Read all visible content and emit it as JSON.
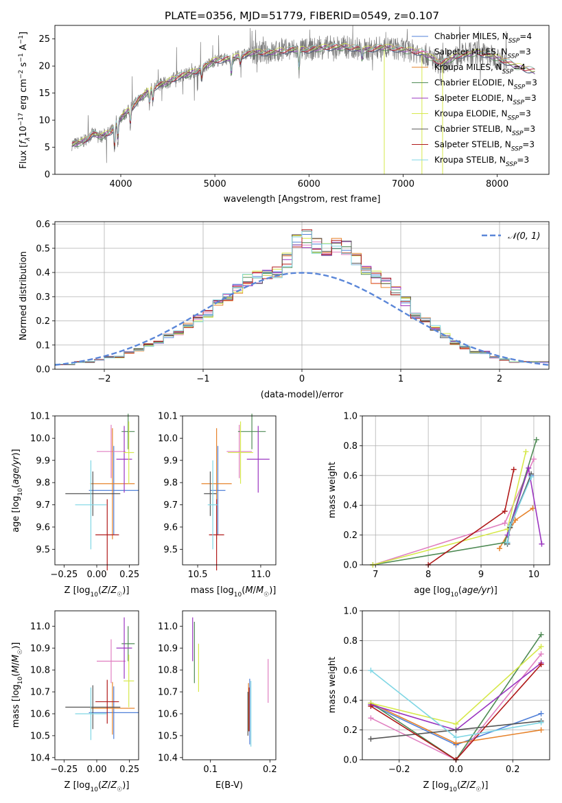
{
  "title": "PLATE=0356, MJD=51779, FIBERID=0549, z=0.107",
  "colors": {
    "Chabrier MILES": "#4f7fd8",
    "Salpeter MILES": "#e07fc0",
    "Kroupa MILES": "#e6822a",
    "Chabrier ELODIE": "#4e8a54",
    "Salpeter ELODIE": "#9a34c0",
    "Kroupa ELODIE": "#d6e84a",
    "Chabrier STELIB": "#555555",
    "Salpeter STELIB": "#b01818",
    "Kroupa STELIB": "#7fd6e4",
    "data": "#7a7a7a",
    "gaussian": "#5a86d8"
  },
  "chart_data": [
    {
      "id": "spectrum",
      "type": "line",
      "xlabel": "wavelength [Angstrom, rest frame]",
      "ylabel": "Flux [f_λ10^-17 erg cm^-2 s^-1 A^-1]",
      "xlim": [
        3300,
        8550
      ],
      "ylim": [
        0,
        27.5
      ],
      "xticks": [
        4000,
        5000,
        6000,
        7000,
        8000
      ],
      "yticks": [
        0,
        5,
        10,
        15,
        20,
        25
      ],
      "legend_position": "right",
      "legend": [
        {
          "model": "Chabrier MILES",
          "nssp": "4"
        },
        {
          "model": "Salpeter MILES",
          "nssp": "3"
        },
        {
          "model": "Kroupa MILES",
          "nssp": "4"
        },
        {
          "model": "Chabrier ELODIE",
          "nssp": "3"
        },
        {
          "model": "Salpeter ELODIE",
          "nssp": "3"
        },
        {
          "model": "Kroupa ELODIE",
          "nssp": "3"
        },
        {
          "model": "Chabrier STELIB",
          "nssp": "3"
        },
        {
          "model": "Salpeter STELIB",
          "nssp": "3"
        },
        {
          "model": "Kroupa STELIB",
          "nssp": "3"
        }
      ],
      "continuum": {
        "x": [
          3480,
          3600,
          3700,
          3800,
          3900,
          4000,
          4100,
          4200,
          4300,
          4400,
          4500,
          4600,
          4700,
          4800,
          4900,
          5000,
          5200,
          5400,
          5600,
          5800,
          6000,
          6200,
          6400,
          6600,
          6800,
          7000,
          7200,
          7400,
          7600,
          7800,
          8000,
          8200,
          8400
        ],
        "y": [
          5.5,
          6.0,
          7.5,
          7.0,
          8.0,
          10.5,
          12.0,
          14.0,
          15.5,
          16.5,
          17.0,
          18.0,
          18.5,
          19.0,
          20.0,
          21.0,
          21.5,
          22.5,
          22.5,
          23.0,
          23.0,
          23.5,
          23.5,
          23.0,
          23.5,
          23.0,
          22.5,
          20.5,
          22.0,
          22.5,
          21.5,
          20.0,
          19.0
        ]
      },
      "data_range": [
        3480,
        8100
      ],
      "absorption_lines": [
        {
          "x": 3934,
          "depth": 5.0
        },
        {
          "x": 3969,
          "depth": 4.0
        },
        {
          "x": 4102,
          "depth": 3.0
        },
        {
          "x": 4305,
          "depth": 3.0
        },
        {
          "x": 4341,
          "depth": 2.5
        },
        {
          "x": 4861,
          "depth": 2.5
        },
        {
          "x": 5175,
          "depth": 3.5
        },
        {
          "x": 5270,
          "depth": 1.5
        },
        {
          "x": 5893,
          "depth": 4.0
        },
        {
          "x": 6563,
          "depth": 2.0
        }
      ],
      "masked_regions": [
        {
          "x": 6800,
          "to": 0
        },
        {
          "x": 7420,
          "to": 0
        },
        {
          "x": 7200,
          "to": 0
        }
      ]
    },
    {
      "id": "residuals",
      "type": "histogram",
      "xlabel": "(data-model)/error",
      "ylabel": "Normed distribution",
      "xlim": [
        -2.5,
        2.5
      ],
      "ylim": [
        0,
        0.61
      ],
      "xticks": [
        -2,
        -1,
        0,
        1,
        2
      ],
      "yticks": [
        0.0,
        0.1,
        0.2,
        0.3,
        0.4,
        0.5,
        0.6
      ],
      "grid": true,
      "legend_position": "top-right",
      "gaussian_label": "𝒩(0, 1)",
      "bin_width": 0.1,
      "base_profile": [
        0.02,
        0.02,
        0.03,
        0.03,
        0.04,
        0.05,
        0.05,
        0.07,
        0.08,
        0.1,
        0.11,
        0.14,
        0.15,
        0.18,
        0.21,
        0.23,
        0.28,
        0.3,
        0.33,
        0.37,
        0.38,
        0.39,
        0.4,
        0.45,
        0.52,
        0.54,
        0.51,
        0.5,
        0.52,
        0.5,
        0.46,
        0.4,
        0.38,
        0.36,
        0.33,
        0.28,
        0.22,
        0.2,
        0.17,
        0.14,
        0.11,
        0.09,
        0.07,
        0.07,
        0.05,
        0.04,
        0.03,
        0.03,
        0.03,
        0.03
      ]
    },
    {
      "id": "age-vs-Z",
      "type": "errorbar",
      "xlabel": "Z [log10(Z/Z☉)]",
      "ylabel": "age [log10(age/yr)]",
      "xlim": [
        -0.32,
        0.32
      ],
      "ylim": [
        9.43,
        10.1
      ],
      "xticks": [
        -0.25,
        0.0,
        0.25
      ],
      "xticklabels": [
        "−0.25",
        "0.00",
        "0.25"
      ],
      "yticks": [
        9.5,
        9.6,
        9.7,
        9.8,
        9.9,
        10.0,
        10.1
      ],
      "points": [
        {
          "model": "Chabrier MILES",
          "x": 0.13,
          "xerr": 0.19,
          "y": 9.765,
          "yerr": 0.2
        },
        {
          "model": "Salpeter MILES",
          "x": 0.11,
          "xerr": 0.11,
          "y": 9.94,
          "yerr": 0.12
        },
        {
          "model": "Kroupa MILES",
          "x": 0.12,
          "xerr": 0.17,
          "y": 9.795,
          "yerr": 0.25
        },
        {
          "model": "Chabrier ELODIE",
          "x": 0.24,
          "xerr": 0.05,
          "y": 10.03,
          "yerr": 0.08
        },
        {
          "model": "Salpeter ELODIE",
          "x": 0.21,
          "xerr": 0.06,
          "y": 9.905,
          "yerr": 0.15
        },
        {
          "model": "Kroupa ELODIE",
          "x": 0.245,
          "xerr": 0.04,
          "y": 9.935,
          "yerr": 0.14
        },
        {
          "model": "Chabrier STELIB",
          "x": -0.03,
          "xerr": 0.21,
          "y": 9.75,
          "yerr": 0.1
        },
        {
          "model": "Salpeter STELIB",
          "x": 0.08,
          "xerr": 0.09,
          "y": 9.565,
          "yerr": 0.16
        },
        {
          "model": "Kroupa STELIB",
          "x": -0.045,
          "xerr": 0.12,
          "y": 9.7,
          "yerr": 0.2
        }
      ]
    },
    {
      "id": "age-vs-mass",
      "type": "errorbar",
      "xlabel": "mass [log10(M/M☉)]",
      "ylabel": "",
      "xlim": [
        10.38,
        11.12
      ],
      "ylim": [
        9.43,
        10.1
      ],
      "xticks": [
        10.5,
        11.0
      ],
      "xticklabels": [
        "10.5",
        "11.0"
      ],
      "yticks": [
        9.5,
        9.6,
        9.7,
        9.8,
        9.9,
        10.0,
        10.1
      ],
      "points": [
        {
          "model": "Chabrier MILES",
          "x": 10.66,
          "xerr": 0.06,
          "y": 9.765,
          "yerr": 0.2
        },
        {
          "model": "Salpeter MILES",
          "x": 10.83,
          "xerr": 0.1,
          "y": 9.94,
          "yerr": 0.12
        },
        {
          "model": "Kroupa MILES",
          "x": 10.65,
          "xerr": 0.12,
          "y": 9.795,
          "yerr": 0.25
        },
        {
          "model": "Chabrier ELODIE",
          "x": 10.93,
          "xerr": 0.11,
          "y": 10.03,
          "yerr": 0.08
        },
        {
          "model": "Salpeter ELODIE",
          "x": 10.98,
          "xerr": 0.09,
          "y": 9.905,
          "yerr": 0.15
        },
        {
          "model": "Kroupa ELODIE",
          "x": 10.84,
          "xerr": 0.1,
          "y": 9.935,
          "yerr": 0.14
        },
        {
          "model": "Chabrier STELIB",
          "x": 10.6,
          "xerr": 0.05,
          "y": 9.75,
          "yerr": 0.1
        },
        {
          "model": "Salpeter STELIB",
          "x": 10.65,
          "xerr": 0.06,
          "y": 9.565,
          "yerr": 0.16
        },
        {
          "model": "Kroupa STELIB",
          "x": 10.62,
          "xerr": 0.04,
          "y": 9.7,
          "yerr": 0.2
        }
      ]
    },
    {
      "id": "weight-vs-age",
      "type": "line",
      "xlabel": "age [log10(age/yr)]",
      "ylabel": "mass weight",
      "xlim": [
        6.75,
        10.3
      ],
      "ylim": [
        0,
        1.0
      ],
      "xticks": [
        7,
        8,
        9,
        10
      ],
      "yticks": [
        0.0,
        0.2,
        0.4,
        0.6,
        0.8,
        1.0
      ],
      "grid": true,
      "series": [
        {
          "model": "Chabrier MILES",
          "x": [
            9.5,
            9.55,
            9.95
          ],
          "y": [
            0.15,
            0.27,
            0.6
          ]
        },
        {
          "model": "Salpeter MILES",
          "x": [
            6.95,
            9.45,
            10.0
          ],
          "y": [
            0.0,
            0.28,
            0.71
          ]
        },
        {
          "model": "Kroupa MILES",
          "x": [
            9.35,
            9.65,
            9.98
          ],
          "y": [
            0.11,
            0.3,
            0.38
          ]
        },
        {
          "model": "Chabrier ELODIE",
          "x": [
            6.95,
            9.45,
            10.05
          ],
          "y": [
            0.0,
            0.15,
            0.84
          ]
        },
        {
          "model": "Salpeter ELODIE",
          "x": [
            9.5,
            9.9,
            10.15
          ],
          "y": [
            0.2,
            0.65,
            0.14
          ]
        },
        {
          "model": "Kroupa ELODIE",
          "x": [
            6.95,
            9.5,
            9.85
          ],
          "y": [
            0.0,
            0.24,
            0.76
          ]
        },
        {
          "model": "Chabrier STELIB",
          "x": [
            9.5,
            9.55,
            9.95
          ],
          "y": [
            0.14,
            0.25,
            0.61
          ]
        },
        {
          "model": "Salpeter STELIB",
          "x": [
            8.0,
            9.45,
            9.62
          ],
          "y": [
            0.0,
            0.36,
            0.64
          ]
        },
        {
          "model": "Kroupa STELIB",
          "x": [
            9.5,
            9.55,
            9.95
          ],
          "y": [
            0.15,
            0.26,
            0.59
          ]
        }
      ]
    },
    {
      "id": "mass-vs-Z",
      "type": "errorbar",
      "xlabel": "Z [log10(Z/Z☉)]",
      "ylabel": "mass [log10(M/M☉)]",
      "xlim": [
        -0.32,
        0.32
      ],
      "ylim": [
        10.39,
        11.07
      ],
      "xticks": [
        -0.25,
        0.0,
        0.25
      ],
      "xticklabels": [
        "−0.25",
        "0.00",
        "0.25"
      ],
      "yticks": [
        10.4,
        10.5,
        10.6,
        10.7,
        10.8,
        10.9,
        11.0
      ],
      "points": [
        {
          "model": "Chabrier MILES",
          "x": 0.13,
          "xerr": 0.19,
          "y": 10.605,
          "yerr": 0.12
        },
        {
          "model": "Salpeter MILES",
          "x": 0.11,
          "xerr": 0.11,
          "y": 10.84,
          "yerr": 0.1
        },
        {
          "model": "Kroupa MILES",
          "x": 0.12,
          "xerr": 0.17,
          "y": 10.625,
          "yerr": 0.12
        },
        {
          "model": "Chabrier ELODIE",
          "x": 0.24,
          "xerr": 0.05,
          "y": 10.92,
          "yerr": 0.08
        },
        {
          "model": "Salpeter ELODIE",
          "x": 0.21,
          "xerr": 0.06,
          "y": 10.9,
          "yerr": 0.14
        },
        {
          "model": "Kroupa ELODIE",
          "x": 0.245,
          "xerr": 0.04,
          "y": 10.75,
          "yerr": 0.12
        },
        {
          "model": "Chabrier STELIB",
          "x": -0.03,
          "xerr": 0.21,
          "y": 10.63,
          "yerr": 0.1
        },
        {
          "model": "Salpeter STELIB",
          "x": 0.08,
          "xerr": 0.09,
          "y": 10.655,
          "yerr": 0.1
        },
        {
          "model": "Kroupa STELIB",
          "x": -0.045,
          "xerr": 0.12,
          "y": 10.6,
          "yerr": 0.12
        }
      ]
    },
    {
      "id": "mass-vs-ebv",
      "type": "errorbar",
      "xlabel": "E(B-V)",
      "ylabel": "",
      "xlim": [
        0.053,
        0.21
      ],
      "ylim": [
        10.39,
        11.07
      ],
      "xticks": [
        0.1,
        0.2
      ],
      "xticklabels": [
        "0.1",
        "0.2"
      ],
      "yticks": [
        10.4,
        10.5,
        10.6,
        10.7,
        10.8,
        10.9,
        11.0
      ],
      "points": [
        {
          "model": "Chabrier MILES",
          "x": 0.166,
          "xerr": 0.0,
          "y": 10.61,
          "yerr": 0.15
        },
        {
          "model": "Salpeter MILES",
          "x": 0.197,
          "xerr": 0.0,
          "y": 10.75,
          "yerr": 0.1
        },
        {
          "model": "Kroupa MILES",
          "x": 0.164,
          "xerr": 0.0,
          "y": 10.63,
          "yerr": 0.11
        },
        {
          "model": "Chabrier ELODIE",
          "x": 0.073,
          "xerr": 0.0,
          "y": 10.88,
          "yerr": 0.14
        },
        {
          "model": "Salpeter ELODIE",
          "x": 0.07,
          "xerr": 0.0,
          "y": 10.94,
          "yerr": 0.1
        },
        {
          "model": "Kroupa ELODIE",
          "x": 0.08,
          "xerr": 0.0,
          "y": 10.81,
          "yerr": 0.11
        },
        {
          "model": "Chabrier STELIB",
          "x": 0.163,
          "xerr": 0.0,
          "y": 10.6,
          "yerr": 0.1
        },
        {
          "model": "Salpeter STELIB",
          "x": 0.165,
          "xerr": 0.0,
          "y": 10.62,
          "yerr": 0.1
        },
        {
          "model": "Kroupa STELIB",
          "x": 0.168,
          "xerr": 0.0,
          "y": 10.6,
          "yerr": 0.15
        }
      ]
    },
    {
      "id": "weight-vs-Z",
      "type": "line",
      "xlabel": "Z [log10(Z/Z☉)]",
      "ylabel": "mass weight",
      "xlim": [
        -0.33,
        0.33
      ],
      "ylim": [
        0,
        1.0
      ],
      "xticks": [
        -0.2,
        0.0,
        0.2
      ],
      "xticklabels": [
        "−0.2",
        "0.0",
        "0.2"
      ],
      "yticks": [
        0.0,
        0.2,
        0.4,
        0.6,
        0.8,
        1.0
      ],
      "grid": true,
      "series": [
        {
          "model": "Chabrier MILES",
          "x": [
            -0.3,
            0.0,
            0.3
          ],
          "y": [
            0.37,
            0.1,
            0.31
          ]
        },
        {
          "model": "Salpeter MILES",
          "x": [
            -0.3,
            0.0,
            0.3
          ],
          "y": [
            0.28,
            0.0,
            0.71
          ]
        },
        {
          "model": "Kroupa MILES",
          "x": [
            -0.3,
            0.0,
            0.3
          ],
          "y": [
            0.38,
            0.11,
            0.2
          ]
        },
        {
          "model": "Chabrier ELODIE",
          "x": [
            -0.3,
            0.0,
            0.3
          ],
          "y": [
            0.38,
            0.0,
            0.84
          ]
        },
        {
          "model": "Salpeter ELODIE",
          "x": [
            -0.3,
            0.0,
            0.3
          ],
          "y": [
            0.37,
            0.2,
            0.65
          ]
        },
        {
          "model": "Kroupa ELODIE",
          "x": [
            -0.3,
            0.0,
            0.3
          ],
          "y": [
            0.38,
            0.24,
            0.76
          ]
        },
        {
          "model": "Chabrier STELIB",
          "x": [
            -0.3,
            0.0,
            0.3
          ],
          "y": [
            0.14,
            0.2,
            0.26
          ]
        },
        {
          "model": "Salpeter STELIB",
          "x": [
            -0.3,
            0.0,
            0.3
          ],
          "y": [
            0.36,
            0.0,
            0.64
          ]
        },
        {
          "model": "Kroupa STELIB",
          "x": [
            -0.3,
            0.0,
            0.3
          ],
          "y": [
            0.6,
            0.15,
            0.25
          ]
        }
      ]
    }
  ]
}
